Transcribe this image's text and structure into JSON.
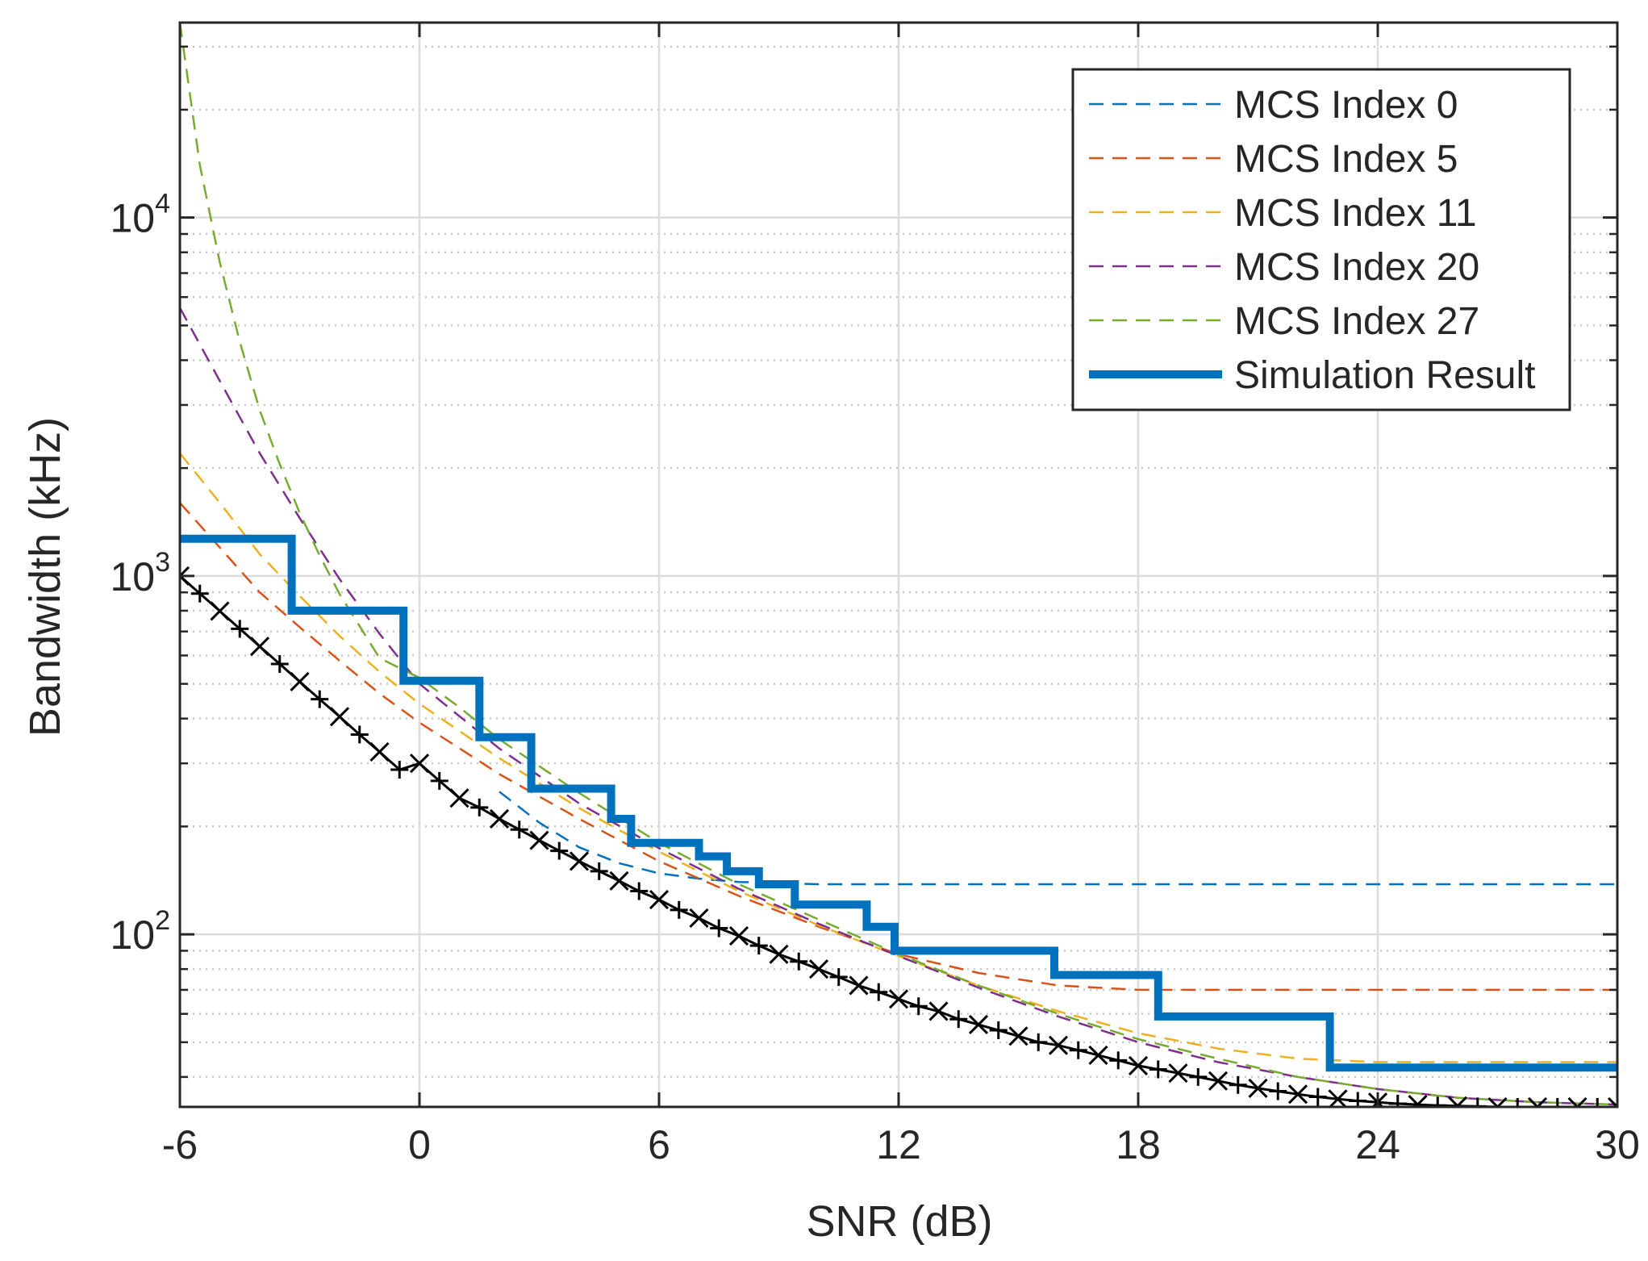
{
  "chart_data": {
    "type": "line",
    "title": "",
    "xlabel": "SNR (dB)",
    "ylabel": "Bandwidth (kHz)",
    "xlim": [
      -6,
      30
    ],
    "ylim": [
      33,
      35000
    ],
    "yscale": "log",
    "grid": "on (major solid, minor dotted)",
    "legend_position": "top-right",
    "x_ticks": [
      -6,
      0,
      6,
      12,
      18,
      24,
      30
    ],
    "x_tick_labels": [
      "-6",
      "0",
      "6",
      "12",
      "18",
      "24",
      "30"
    ],
    "y_ticks": [
      100,
      1000,
      10000
    ],
    "y_tick_labels": [
      {
        "base": "10",
        "exp": "2"
      },
      {
        "base": "10",
        "exp": "3"
      },
      {
        "base": "10",
        "exp": "4"
      }
    ],
    "series": [
      {
        "name": "MCS Index 0",
        "style": "dashed",
        "color": "#0072BD",
        "x": [
          2,
          3,
          4,
          5,
          6,
          7,
          8,
          10,
          12,
          16,
          20,
          25,
          30
        ],
        "y": [
          250,
          205,
          175,
          158,
          148,
          143,
          140,
          138,
          138,
          138,
          138,
          138,
          138
        ]
      },
      {
        "name": "MCS Index 5",
        "style": "dashed",
        "color": "#D95319",
        "x": [
          -6,
          -5,
          -4,
          -3,
          -2,
          -1,
          0,
          2,
          4,
          6,
          8,
          10,
          12,
          14,
          16,
          18,
          20,
          24,
          30
        ],
        "y": [
          1600,
          1200,
          900,
          720,
          580,
          470,
          390,
          280,
          210,
          160,
          128,
          105,
          88,
          78,
          72,
          70,
          70,
          70,
          70
        ]
      },
      {
        "name": "MCS Index 11",
        "style": "dashed",
        "color": "#EDB120",
        "x": [
          -6,
          -5,
          -4,
          -3,
          -2,
          -1,
          0,
          2,
          4,
          6,
          8,
          10,
          12,
          14,
          16,
          18,
          20,
          22,
          24,
          30
        ],
        "y": [
          2200,
          1600,
          1150,
          880,
          680,
          540,
          440,
          310,
          225,
          170,
          132,
          106,
          87,
          72,
          61,
          53,
          48,
          45,
          44,
          44
        ]
      },
      {
        "name": "MCS Index 20",
        "style": "dashed",
        "color": "#7E2F8E",
        "x": [
          -6,
          -5,
          -4,
          -3,
          -2,
          -1,
          0,
          2,
          4,
          6,
          8,
          10,
          12,
          14,
          16,
          18,
          20,
          22,
          24,
          26,
          28,
          30
        ],
        "y": [
          5600,
          3500,
          2200,
          1450,
          980,
          690,
          500,
          330,
          232,
          174,
          134,
          107,
          87,
          71,
          59,
          50,
          44,
          40,
          37,
          35,
          34,
          33.5
        ]
      },
      {
        "name": "MCS Index 27",
        "style": "dashed",
        "color": "#77AC30",
        "x": [
          -6,
          -5.5,
          -5,
          -4.5,
          -4,
          -3.5,
          -3,
          -2.5,
          -2,
          -1,
          0,
          1,
          2,
          4,
          6,
          8,
          10,
          12,
          14,
          16,
          18,
          20,
          22,
          24,
          26,
          28,
          30
        ],
        "y": [
          35000,
          14000,
          7500,
          4500,
          2900,
          2050,
          1500,
          1140,
          890,
          590,
          520,
          430,
          350,
          248,
          180,
          138,
          110,
          88,
          72,
          60,
          51,
          45,
          40,
          37,
          35,
          34,
          33.5
        ]
      },
      {
        "name": "Simulation Result",
        "style": "solid-step",
        "color": "#0072BD",
        "x": [
          -6,
          -3.2,
          -3.2,
          -0.4,
          -0.4,
          1.5,
          1.5,
          2.8,
          2.8,
          4.8,
          4.8,
          5.3,
          5.3,
          7.0,
          7.0,
          7.7,
          7.7,
          8.5,
          8.5,
          9.4,
          9.4,
          11.2,
          11.2,
          11.9,
          11.9,
          15.9,
          15.9,
          18.5,
          18.5,
          22.8,
          22.8,
          30
        ],
        "y": [
          1270,
          1270,
          800,
          800,
          510,
          510,
          355,
          355,
          255,
          255,
          210,
          210,
          180,
          180,
          165,
          165,
          150,
          150,
          138,
          138,
          121,
          121,
          105,
          105,
          90,
          90,
          77,
          77,
          59,
          59,
          42.5,
          42.5
        ]
      },
      {
        "name": "",
        "style": "markers (x and +)",
        "color": "#000000",
        "x": [
          -6,
          -5.5,
          -5,
          -4.5,
          -4,
          -3.5,
          -3,
          -2.5,
          -2,
          -1.5,
          -1,
          -0.5,
          0,
          0.5,
          1,
          1.5,
          2,
          2.5,
          3,
          3.5,
          4,
          4.5,
          5,
          5.5,
          6,
          6.5,
          7,
          7.5,
          8,
          8.5,
          9,
          9.5,
          10,
          10.5,
          11,
          11.5,
          12,
          12.5,
          13,
          13.5,
          14,
          14.5,
          15,
          15.5,
          16,
          16.5,
          17,
          17.5,
          18,
          18.5,
          19,
          19.5,
          20,
          20.5,
          21,
          21.5,
          22,
          22.5,
          23,
          23.5,
          24,
          24.5,
          25,
          25.5,
          26,
          26.5,
          27,
          27.5,
          28,
          28.5,
          29,
          29.5,
          30
        ],
        "y": [
          1000,
          893,
          798,
          712,
          636,
          568,
          507,
          453,
          405,
          361,
          323,
          288,
          300,
          268,
          240,
          226,
          210,
          196,
          183,
          171,
          160,
          150,
          141,
          132,
          125,
          117,
          111,
          104,
          99,
          93,
          88,
          84,
          80,
          76,
          72,
          69,
          66,
          63,
          61,
          58,
          56,
          54,
          52,
          50,
          49,
          47.5,
          46,
          44.5,
          43,
          42,
          41,
          40,
          39,
          38,
          37.2,
          36.5,
          35.8,
          35.2,
          34.7,
          34.3,
          34,
          33.7,
          33.5,
          33.3,
          33.2,
          33.1,
          33,
          33,
          33,
          33,
          33,
          33,
          33
        ]
      }
    ]
  }
}
